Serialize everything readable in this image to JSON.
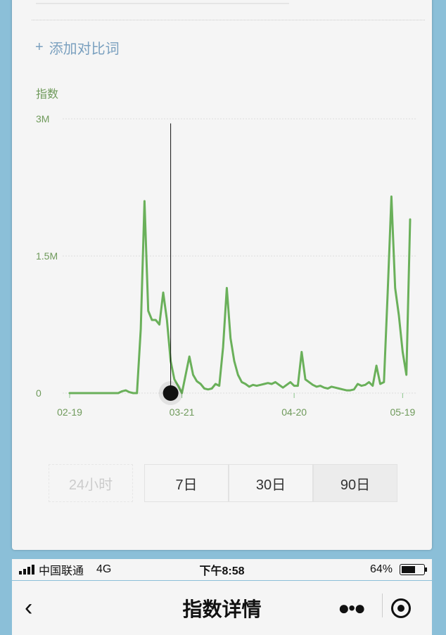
{
  "panel": {
    "add_compare_label": "添加对比词",
    "add_compare_icon": "plus-icon",
    "y_axis_title": "指数",
    "line_color": "#6ab05a"
  },
  "chart_data": {
    "type": "line",
    "title": "",
    "ylabel": "指数",
    "y_ticks": [
      "3M",
      "1.5M",
      "0"
    ],
    "ylim": [
      0,
      3000000
    ],
    "x_ticks": [
      "02-19",
      "03-21",
      "04-20",
      "05-19"
    ],
    "series": [
      {
        "values": [
          0,
          0,
          0,
          0,
          0,
          0,
          0,
          0,
          0,
          0,
          0,
          0,
          0,
          0,
          20000,
          30000,
          10000,
          0,
          0,
          700000,
          2100000,
          900000,
          800000,
          800000,
          750000,
          1100000,
          800000,
          350000,
          150000,
          80000,
          0,
          200000,
          400000,
          200000,
          130000,
          100000,
          50000,
          40000,
          50000,
          100000,
          80000,
          500000,
          1150000,
          600000,
          350000,
          200000,
          120000,
          100000,
          70000,
          90000,
          80000,
          90000,
          100000,
          110000,
          100000,
          120000,
          90000,
          60000,
          90000,
          120000,
          80000,
          80000,
          450000,
          150000,
          120000,
          90000,
          70000,
          80000,
          60000,
          50000,
          70000,
          60000,
          50000,
          40000,
          30000,
          30000,
          40000,
          100000,
          80000,
          90000,
          120000,
          80000,
          300000,
          100000,
          120000,
          1100000,
          2150000,
          1150000,
          850000,
          450000,
          200000,
          1900000
        ]
      }
    ],
    "x_start": "02-19",
    "x_step": "1 day",
    "cursor": {
      "x_index": 27
    }
  },
  "range": {
    "options": [
      "24小时",
      "7日",
      "30日",
      "90日"
    ],
    "selected": "90日"
  },
  "status": {
    "carrier": "中国联通",
    "network": "4G",
    "time": "下午8:58",
    "battery": "64%",
    "battery_level": 0.64
  },
  "nav": {
    "title": "指数详情",
    "back_icon": "chevron-left-icon",
    "more_icon": "more-dots-icon",
    "target_icon": "target-icon"
  }
}
